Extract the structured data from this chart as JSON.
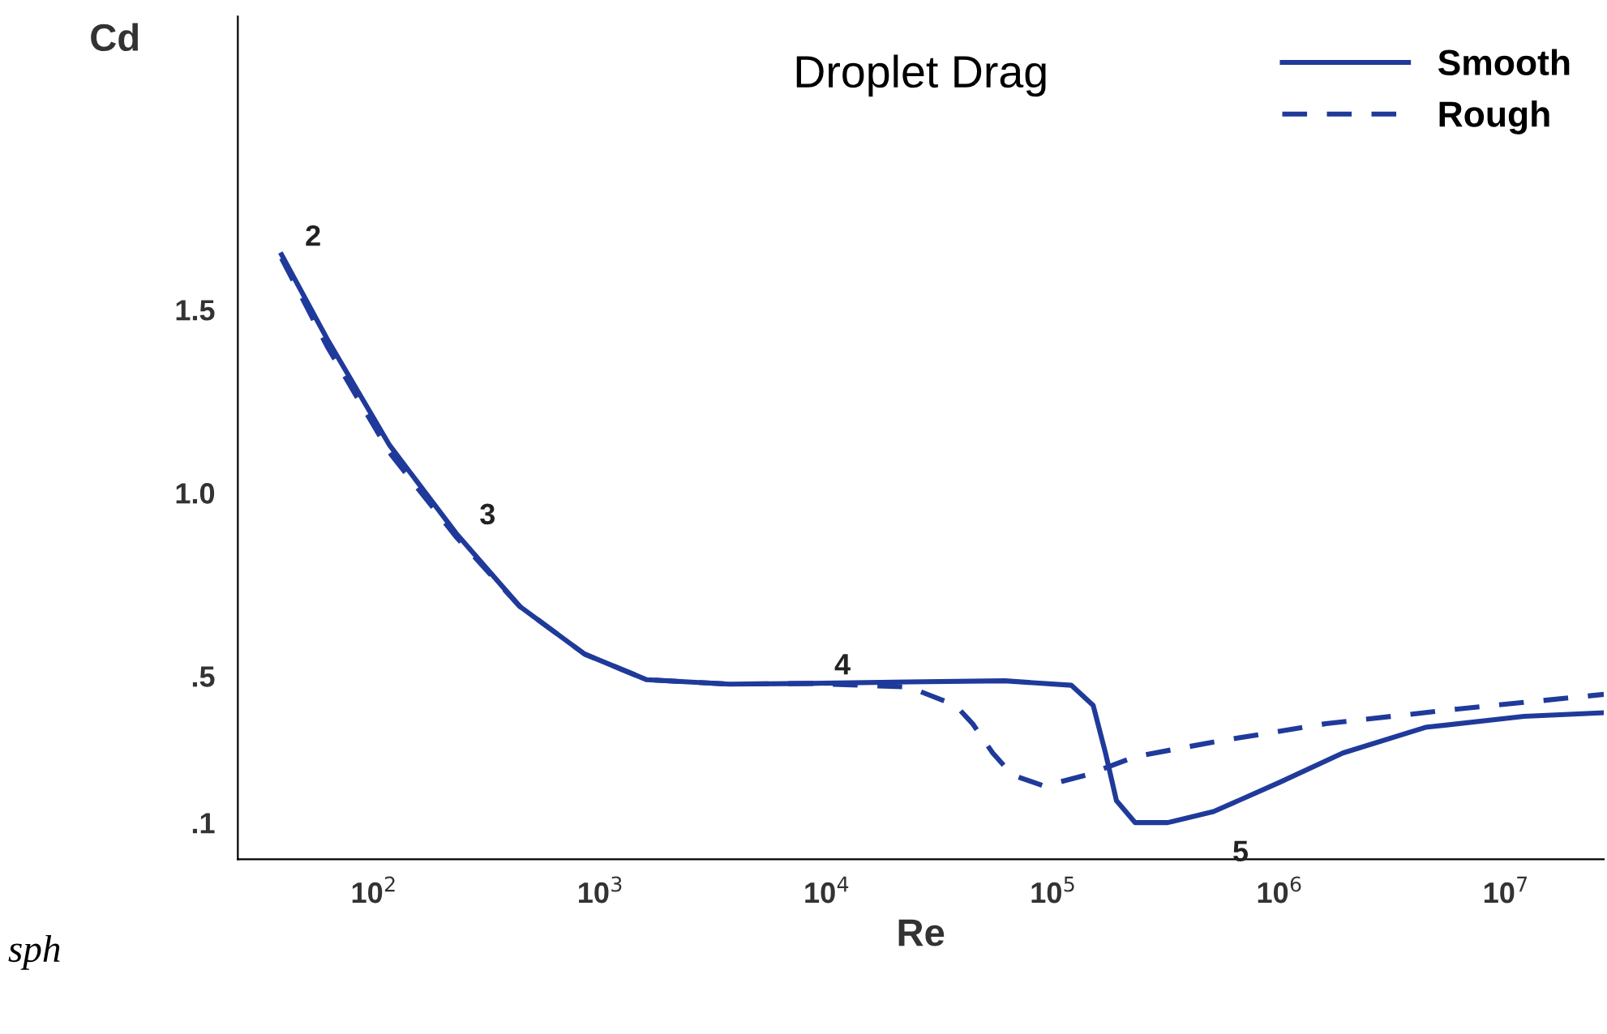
{
  "chart_data": {
    "type": "line",
    "title": "Droplet Drag",
    "xlabel": "Re",
    "ylabel": "Cd",
    "log": "x",
    "series": [
      {
        "name": "Smooth",
        "color": "#1f3a9a",
        "line_style": "solid",
        "x": [
          39,
          62,
          117,
          230,
          440,
          850,
          1600,
          3700,
          8500,
          23000,
          61000,
          120000,
          150000,
          170000,
          190000,
          230000,
          320000,
          510000,
          1000000,
          1900000,
          4400000,
          12000000,
          27000000
        ],
        "values": [
          1.65,
          1.42,
          1.13,
          0.89,
          0.69,
          0.56,
          0.49,
          0.478,
          0.48,
          0.484,
          0.487,
          0.475,
          0.42,
          0.29,
          0.16,
          0.1,
          0.1,
          0.13,
          0.21,
          0.29,
          0.36,
          0.39,
          0.4
        ]
      },
      {
        "name": "Rough",
        "color": "#1f3a9a",
        "line_style": "dashed",
        "x": [
          39,
          62,
          117,
          230,
          440,
          850,
          1600,
          3700,
          8500,
          23000,
          37000,
          44000,
          54000,
          66000,
          91000,
          140000,
          230000,
          510000,
          1600000,
          6100000,
          27000000
        ],
        "values": [
          1.64,
          1.4,
          1.11,
          0.88,
          0.69,
          0.56,
          0.49,
          0.478,
          0.48,
          0.47,
          0.42,
          0.37,
          0.29,
          0.23,
          0.2,
          0.23,
          0.28,
          0.32,
          0.37,
          0.41,
          0.45
        ]
      }
    ],
    "xlim": [
      25,
      27000000
    ],
    "xticks": [
      {
        "value": 100,
        "label": "10$^{2}$"
      },
      {
        "value": 1000,
        "label": "10$^{3}$"
      },
      {
        "value": 10000,
        "label": "10$^{4}$"
      },
      {
        "value": 100000,
        "label": "10$^{5}$"
      },
      {
        "value": 1000000,
        "label": "10$^{6}$"
      },
      {
        "value": 10000000,
        "label": "10$^{7}$"
      }
    ],
    "ylim": [
      0,
      2.3
    ],
    "yticks": [
      {
        "value": 0.1,
        "label": ".1"
      },
      {
        "value": 0.5,
        "label": ".5"
      },
      {
        "value": 1.0,
        "label": "1.0"
      },
      1.5
    ],
    "annotations": [
      {
        "text": "2",
        "x": 39,
        "y": 1.65
      },
      {
        "text": "3",
        "x": 230,
        "y": 0.89
      },
      {
        "text": "4",
        "x": 8500,
        "y": 0.48
      },
      {
        "text": "5",
        "x": 510000,
        "y": 0.13
      },
      "sph"
    ],
    "legend": "top right",
    "grid": false
  }
}
